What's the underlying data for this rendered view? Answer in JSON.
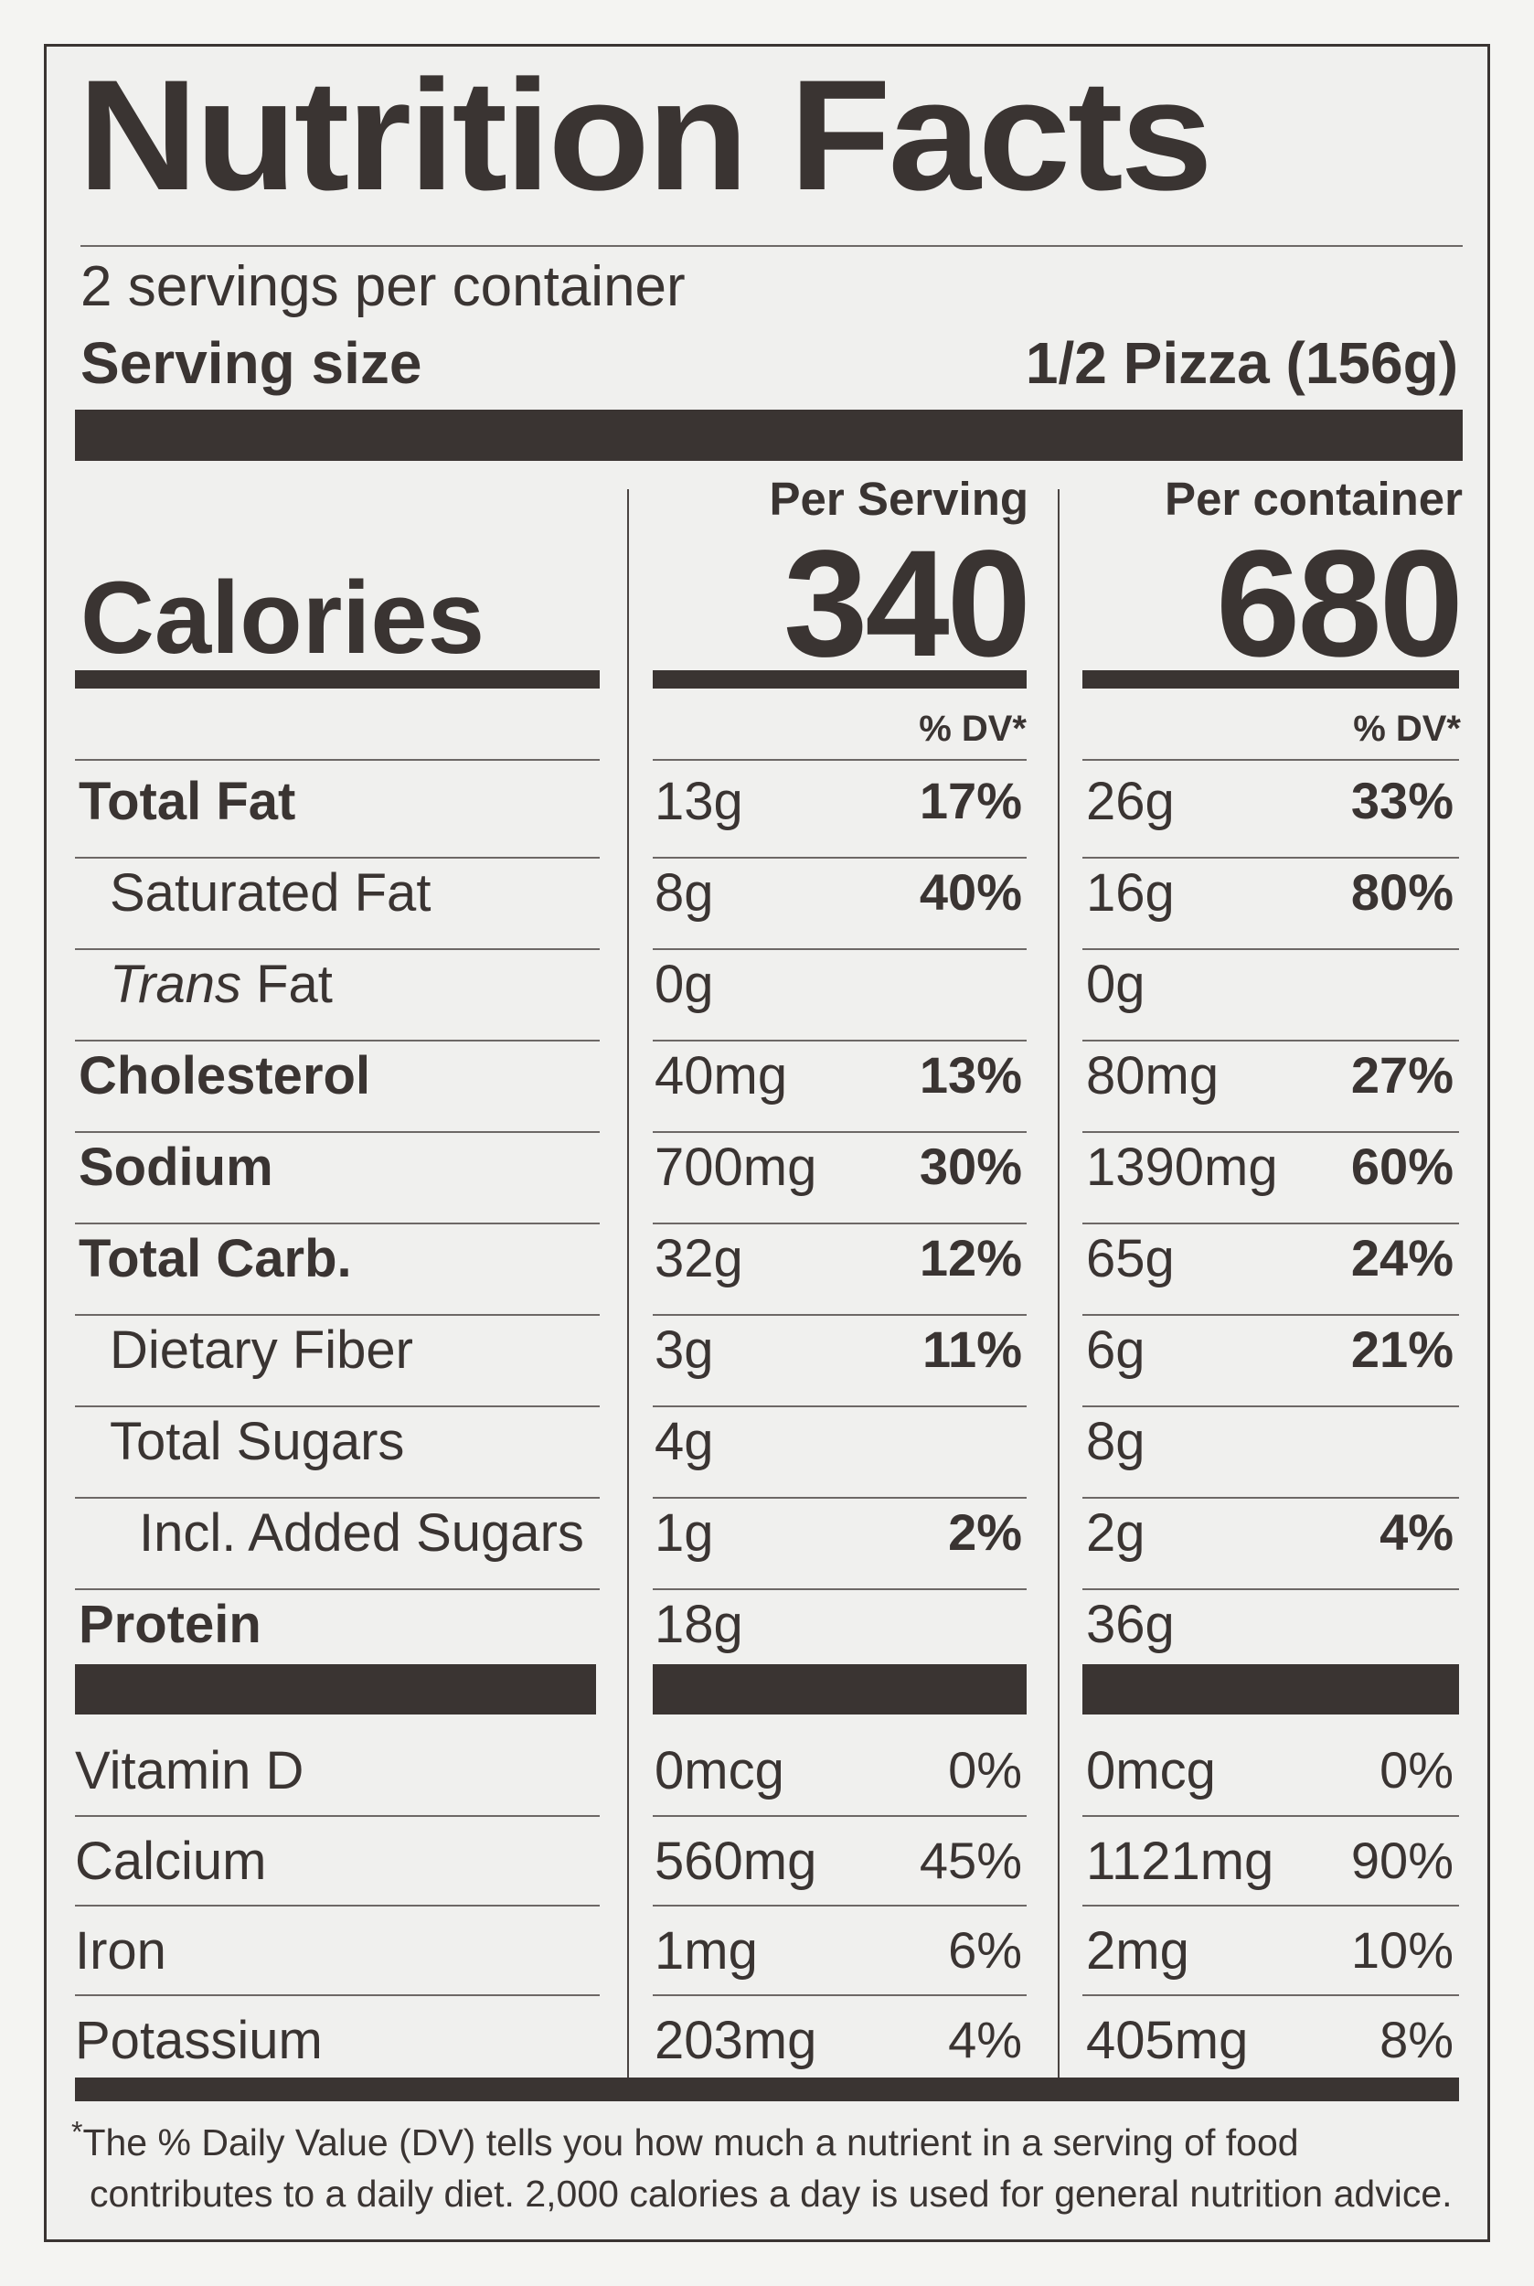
{
  "title": "Nutrition Facts",
  "servings_per_container": "2 servings per container",
  "serving_size": {
    "label": "Serving size",
    "value": "1/2 Pizza (156g)"
  },
  "calories": {
    "label": "Calories",
    "per_serving_header": "Per Serving",
    "per_container_header": "Per container",
    "per_serving": "340",
    "per_container": "680"
  },
  "dv_header": "% DV*",
  "nutrients": [
    {
      "name": "Total Fat",
      "style": "bold",
      "indent": 0,
      "serving_amount": "13g",
      "serving_dv": "17%",
      "container_amount": "26g",
      "container_dv": "33%"
    },
    {
      "name": "Saturated Fat",
      "style": "normal",
      "indent": 1,
      "serving_amount": "8g",
      "serving_dv": "40%",
      "container_amount": "16g",
      "container_dv": "80%"
    },
    {
      "name_prefix": "Trans",
      "name": "Fat",
      "style": "normal",
      "indent": 1,
      "serving_amount": "0g",
      "serving_dv": "",
      "container_amount": "0g",
      "container_dv": ""
    },
    {
      "name": "Cholesterol",
      "style": "bold",
      "indent": 0,
      "serving_amount": "40mg",
      "serving_dv": "13%",
      "container_amount": "80mg",
      "container_dv": "27%"
    },
    {
      "name": "Sodium",
      "style": "bold",
      "indent": 0,
      "serving_amount": "700mg",
      "serving_dv": "30%",
      "container_amount": "1390mg",
      "container_dv": "60%"
    },
    {
      "name": "Total Carb.",
      "style": "bold",
      "indent": 0,
      "serving_amount": "32g",
      "serving_dv": "12%",
      "container_amount": "65g",
      "container_dv": "24%"
    },
    {
      "name": "Dietary Fiber",
      "style": "normal",
      "indent": 1,
      "serving_amount": "3g",
      "serving_dv": "11%",
      "container_amount": "6g",
      "container_dv": "21%"
    },
    {
      "name": "Total Sugars",
      "style": "normal",
      "indent": 1,
      "serving_amount": "4g",
      "serving_dv": "",
      "container_amount": "8g",
      "container_dv": ""
    },
    {
      "name": "Incl. Added Sugars",
      "style": "normal",
      "indent": 2,
      "serving_amount": "1g",
      "serving_dv": "2%",
      "container_amount": "2g",
      "container_dv": "4%"
    },
    {
      "name": "Protein",
      "style": "bold",
      "indent": 0,
      "serving_amount": "18g",
      "serving_dv": "",
      "container_amount": "36g",
      "container_dv": ""
    }
  ],
  "vitamins": [
    {
      "name": "Vitamin D",
      "serving_amount": "0mcg",
      "serving_dv": "0%",
      "container_amount": "0mcg",
      "container_dv": "0%"
    },
    {
      "name": "Calcium",
      "serving_amount": "560mg",
      "serving_dv": "45%",
      "container_amount": "1121mg",
      "container_dv": "90%"
    },
    {
      "name": "Iron",
      "serving_amount": "1mg",
      "serving_dv": "6%",
      "container_amount": "2mg",
      "container_dv": "10%"
    },
    {
      "name": "Potassium",
      "serving_amount": "203mg",
      "serving_dv": "4%",
      "container_amount": "405mg",
      "container_dv": "8%"
    }
  ],
  "footnote": {
    "star": "*",
    "line1": "The % Daily Value (DV) tells you how much a nutrient in a serving of food",
    "line2": "contributes to a daily diet. 2,000 calories a day is used for general nutrition advice."
  }
}
